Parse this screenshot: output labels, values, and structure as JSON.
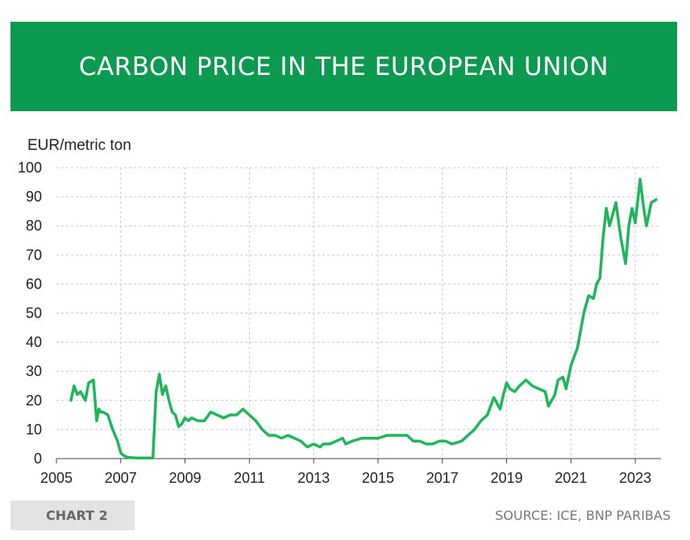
{
  "header": {
    "title": "CARBON PRICE IN THE EUROPEAN UNION"
  },
  "footer": {
    "chart_label": "CHART 2",
    "source": "SOURCE: ICE, BNP PARIBAS"
  },
  "colors": {
    "banner": "#0b9a4f",
    "line": "#1fb65a",
    "grid": "#c8c8c8"
  },
  "chart_data": {
    "type": "line",
    "title": "CARBON PRICE IN THE EUROPEAN UNION",
    "ylabel": "EUR/metric ton",
    "xlabel": "",
    "ylim": [
      0,
      100
    ],
    "xlim": [
      2005,
      2023.8
    ],
    "yticks": [
      0,
      10,
      20,
      30,
      40,
      50,
      60,
      70,
      80,
      90,
      100
    ],
    "xticks": [
      2005,
      2007,
      2009,
      2011,
      2013,
      2015,
      2017,
      2019,
      2021,
      2023
    ],
    "grid": true,
    "series": [
      {
        "x": [
          2005.45,
          2005.55,
          2005.65,
          2005.75,
          2005.9,
          2006.0,
          2006.15,
          2006.25,
          2006.32,
          2006.38,
          2006.45,
          2006.6,
          2006.75,
          2006.9,
          2007.0,
          2007.1,
          2007.2,
          2007.35,
          2007.5,
          2007.8,
          2008.0,
          2008.1,
          2008.2,
          2008.3,
          2008.4,
          2008.5,
          2008.6,
          2008.7,
          2008.8,
          2008.9,
          2009.0,
          2009.1,
          2009.2,
          2009.4,
          2009.6,
          2009.8,
          2010.0,
          2010.2,
          2010.4,
          2010.6,
          2010.8,
          2011.0,
          2011.2,
          2011.4,
          2011.5,
          2011.6,
          2011.8,
          2012.0,
          2012.2,
          2012.4,
          2012.6,
          2012.8,
          2013.0,
          2013.2,
          2013.3,
          2013.5,
          2013.7,
          2013.9,
          2014.0,
          2014.2,
          2014.5,
          2014.8,
          2015.0,
          2015.3,
          2015.6,
          2015.9,
          2016.1,
          2016.3,
          2016.5,
          2016.7,
          2016.9,
          2017.1,
          2017.3,
          2017.6,
          2017.8,
          2018.0,
          2018.2,
          2018.4,
          2018.6,
          2018.8,
          2018.9,
          2019.0,
          2019.1,
          2019.25,
          2019.4,
          2019.6,
          2019.8,
          2020.0,
          2020.2,
          2020.3,
          2020.4,
          2020.5,
          2020.6,
          2020.75,
          2020.85,
          2021.0,
          2021.2,
          2021.4,
          2021.55,
          2021.7,
          2021.8,
          2021.9,
          2022.0,
          2022.1,
          2022.2,
          2022.3,
          2022.4,
          2022.55,
          2022.7,
          2022.8,
          2022.9,
          2023.0,
          2023.15,
          2023.25,
          2023.35,
          2023.5,
          2023.65
        ],
        "values": [
          20,
          25,
          22,
          23,
          20,
          26,
          27,
          13,
          17,
          16,
          16,
          15,
          10,
          6,
          2,
          1,
          0.5,
          0.3,
          0.2,
          0.2,
          0.2,
          23,
          29,
          22,
          25,
          20,
          16,
          15,
          11,
          12,
          14,
          13,
          14,
          13,
          13,
          16,
          15,
          14,
          15,
          15,
          17,
          15,
          13,
          10,
          9,
          8,
          8,
          7,
          8,
          7,
          6,
          4,
          5,
          4,
          5,
          5,
          6,
          7,
          5,
          6,
          7,
          7,
          7,
          8,
          8,
          8,
          6,
          6,
          5,
          5,
          6,
          6,
          5,
          6,
          8,
          10,
          13,
          15,
          21,
          17,
          22,
          26,
          24,
          23,
          25,
          27,
          25,
          24,
          23,
          18,
          20,
          22,
          27,
          28,
          24,
          32,
          38,
          50,
          56,
          55,
          60,
          62,
          76,
          86,
          80,
          84,
          88,
          76,
          67,
          80,
          86,
          81,
          96,
          87,
          80,
          88,
          89
        ]
      }
    ]
  }
}
